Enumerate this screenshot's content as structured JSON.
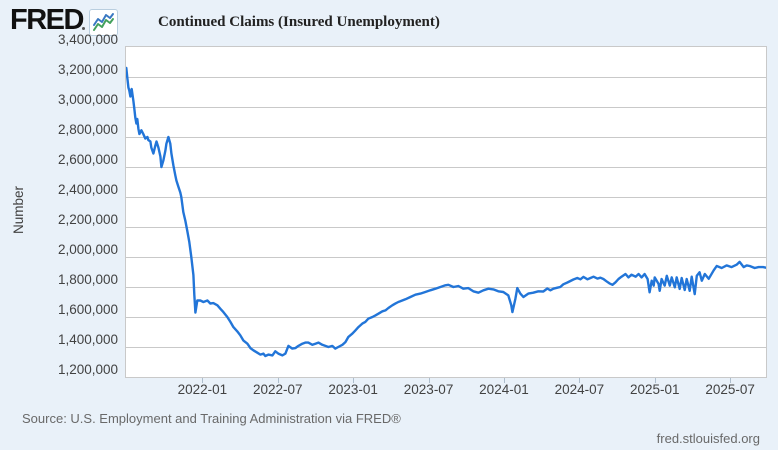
{
  "header": {
    "logo_text": "FRED"
  },
  "footer": {
    "source_text": "Source: U.S. Employment and Training Administration via FRED®",
    "site_text": "fred.stlouisfed.org"
  },
  "colors": {
    "background": "#e9f1f9",
    "plot_background": "#ffffff",
    "gridline": "#c9c9c9",
    "line": "#2275d8",
    "axis_text": "#424242",
    "footer_text": "#696969",
    "spark_blue": "#3a78c2",
    "spark_green": "#44a15c"
  },
  "icons": {
    "logo_icon": "fred-sparkline-icon"
  },
  "chart_data": {
    "type": "line",
    "title": "Continued Claims (Insured Unemployment)",
    "legend": [
      "Continued Claims (Insured Unemployment)"
    ],
    "ylabel": "Number",
    "xlabel": "",
    "grid": "horizontal",
    "legend_position": "top-left",
    "x_range": [
      2021.487,
      2025.731
    ],
    "y_range": [
      1200000,
      3400000
    ],
    "y_ticks": [
      {
        "value": 3400000,
        "label": "3,400,000"
      },
      {
        "value": 3200000,
        "label": "3,200,000"
      },
      {
        "value": 3000000,
        "label": "3,000,000"
      },
      {
        "value": 2800000,
        "label": "2,800,000"
      },
      {
        "value": 2600000,
        "label": "2,600,000"
      },
      {
        "value": 2400000,
        "label": "2,400,000"
      },
      {
        "value": 2200000,
        "label": "2,200,000"
      },
      {
        "value": 2000000,
        "label": "2,000,000"
      },
      {
        "value": 1800000,
        "label": "1,800,000"
      },
      {
        "value": 1600000,
        "label": "1,600,000"
      },
      {
        "value": 1400000,
        "label": "1,400,000"
      },
      {
        "value": 1200000,
        "label": "1,200,000"
      }
    ],
    "x_ticks": [
      {
        "year": 2022.0,
        "label": "2022-01"
      },
      {
        "year": 2022.5,
        "label": "2022-07"
      },
      {
        "year": 2023.0,
        "label": "2023-01"
      },
      {
        "year": 2023.5,
        "label": "2023-07"
      },
      {
        "year": 2024.0,
        "label": "2024-01"
      },
      {
        "year": 2024.5,
        "label": "2024-07"
      },
      {
        "year": 2025.0,
        "label": "2025-01"
      },
      {
        "year": 2025.5,
        "label": "2025-07"
      }
    ],
    "series": [
      {
        "name": "Continued Claims (Insured Unemployment)",
        "color": "#2275d8",
        "points": [
          [
            2021.489,
            3260000
          ],
          [
            2021.496,
            3190000
          ],
          [
            2021.503,
            3130000
          ],
          [
            2021.509,
            3110000
          ],
          [
            2021.516,
            3070000
          ],
          [
            2021.525,
            3120000
          ],
          [
            2021.536,
            3040000
          ],
          [
            2021.542,
            2990000
          ],
          [
            2021.549,
            2930000
          ],
          [
            2021.556,
            2890000
          ],
          [
            2021.562,
            2920000
          ],
          [
            2021.569,
            2855000
          ],
          [
            2021.576,
            2820000
          ],
          [
            2021.589,
            2845000
          ],
          [
            2021.602,
            2820000
          ],
          [
            2021.615,
            2790000
          ],
          [
            2021.629,
            2800000
          ],
          [
            2021.635,
            2780000
          ],
          [
            2021.649,
            2770000
          ],
          [
            2021.655,
            2730000
          ],
          [
            2021.669,
            2690000
          ],
          [
            2021.682,
            2745000
          ],
          [
            2021.689,
            2770000
          ],
          [
            2021.702,
            2730000
          ],
          [
            2021.715,
            2670000
          ],
          [
            2021.722,
            2600000
          ],
          [
            2021.735,
            2645000
          ],
          [
            2021.748,
            2710000
          ],
          [
            2021.755,
            2755000
          ],
          [
            2021.768,
            2800000
          ],
          [
            2021.781,
            2755000
          ],
          [
            2021.788,
            2690000
          ],
          [
            2021.801,
            2610000
          ],
          [
            2021.814,
            2545000
          ],
          [
            2021.821,
            2510000
          ],
          [
            2021.834,
            2470000
          ],
          [
            2021.847,
            2430000
          ],
          [
            2021.854,
            2400000
          ],
          [
            2021.867,
            2300000
          ],
          [
            2021.881,
            2240000
          ],
          [
            2021.894,
            2170000
          ],
          [
            2021.907,
            2100000
          ],
          [
            2021.92,
            2000000
          ],
          [
            2021.934,
            1880000
          ],
          [
            2021.94,
            1750000
          ],
          [
            2021.947,
            1630000
          ],
          [
            2021.96,
            1710000
          ],
          [
            2021.98,
            1710000
          ],
          [
            2022.0,
            1700000
          ],
          [
            2022.027,
            1710000
          ],
          [
            2022.046,
            1690000
          ],
          [
            2022.066,
            1693000
          ],
          [
            2022.093,
            1678000
          ],
          [
            2022.113,
            1655000
          ],
          [
            2022.133,
            1633000
          ],
          [
            2022.159,
            1600000
          ],
          [
            2022.179,
            1567000
          ],
          [
            2022.199,
            1533000
          ],
          [
            2022.225,
            1504000
          ],
          [
            2022.245,
            1478000
          ],
          [
            2022.265,
            1444000
          ],
          [
            2022.292,
            1422000
          ],
          [
            2022.312,
            1393000
          ],
          [
            2022.332,
            1378000
          ],
          [
            2022.358,
            1362000
          ],
          [
            2022.378,
            1349000
          ],
          [
            2022.398,
            1356000
          ],
          [
            2022.411,
            1340000
          ],
          [
            2022.431,
            1349000
          ],
          [
            2022.458,
            1344000
          ],
          [
            2022.477,
            1371000
          ],
          [
            2022.497,
            1356000
          ],
          [
            2022.524,
            1344000
          ],
          [
            2022.544,
            1356000
          ],
          [
            2022.564,
            1407000
          ],
          [
            2022.59,
            1389000
          ],
          [
            2022.61,
            1393000
          ],
          [
            2022.63,
            1407000
          ],
          [
            2022.656,
            1422000
          ],
          [
            2022.676,
            1429000
          ],
          [
            2022.696,
            1429000
          ],
          [
            2022.723,
            1415000
          ],
          [
            2022.743,
            1422000
          ],
          [
            2022.763,
            1429000
          ],
          [
            2022.789,
            1415000
          ],
          [
            2022.809,
            1407000
          ],
          [
            2022.829,
            1400000
          ],
          [
            2022.855,
            1407000
          ],
          [
            2022.875,
            1389000
          ],
          [
            2022.895,
            1400000
          ],
          [
            2022.922,
            1415000
          ],
          [
            2022.942,
            1433000
          ],
          [
            2022.962,
            1467000
          ],
          [
            2022.988,
            1489000
          ],
          [
            2023.008,
            1511000
          ],
          [
            2023.028,
            1533000
          ],
          [
            2023.054,
            1556000
          ],
          [
            2023.074,
            1567000
          ],
          [
            2023.094,
            1589000
          ],
          [
            2023.121,
            1600000
          ],
          [
            2023.141,
            1611000
          ],
          [
            2023.161,
            1622000
          ],
          [
            2023.187,
            1638000
          ],
          [
            2023.207,
            1644000
          ],
          [
            2023.227,
            1660000
          ],
          [
            2023.253,
            1678000
          ],
          [
            2023.273,
            1689000
          ],
          [
            2023.293,
            1700000
          ],
          [
            2023.306,
            1705000
          ],
          [
            2023.34,
            1718000
          ],
          [
            2023.373,
            1733000
          ],
          [
            2023.406,
            1749000
          ],
          [
            2023.439,
            1756000
          ],
          [
            2023.472,
            1767000
          ],
          [
            2023.505,
            1778000
          ],
          [
            2023.539,
            1789000
          ],
          [
            2023.572,
            1800000
          ],
          [
            2023.605,
            1811000
          ],
          [
            2023.625,
            1815000
          ],
          [
            2023.658,
            1800000
          ],
          [
            2023.691,
            1807000
          ],
          [
            2023.724,
            1789000
          ],
          [
            2023.757,
            1793000
          ],
          [
            2023.79,
            1771000
          ],
          [
            2023.824,
            1762000
          ],
          [
            2023.857,
            1778000
          ],
          [
            2023.89,
            1789000
          ],
          [
            2023.923,
            1784000
          ],
          [
            2023.956,
            1771000
          ],
          [
            2023.989,
            1767000
          ],
          [
            2024.022,
            1744000
          ],
          [
            2024.042,
            1678000
          ],
          [
            2024.049,
            1633000
          ],
          [
            2024.069,
            1722000
          ],
          [
            2024.082,
            1793000
          ],
          [
            2024.102,
            1756000
          ],
          [
            2024.122,
            1733000
          ],
          [
            2024.155,
            1756000
          ],
          [
            2024.188,
            1762000
          ],
          [
            2024.221,
            1771000
          ],
          [
            2024.254,
            1770000
          ],
          [
            2024.281,
            1790000
          ],
          [
            2024.301,
            1778000
          ],
          [
            2024.321,
            1789000
          ],
          [
            2024.347,
            1795000
          ],
          [
            2024.367,
            1800000
          ],
          [
            2024.387,
            1818000
          ],
          [
            2024.414,
            1830000
          ],
          [
            2024.434,
            1840000
          ],
          [
            2024.454,
            1850000
          ],
          [
            2024.48,
            1860000
          ],
          [
            2024.5,
            1851000
          ],
          [
            2024.52,
            1867000
          ],
          [
            2024.547,
            1851000
          ],
          [
            2024.567,
            1860000
          ],
          [
            2024.587,
            1869000
          ],
          [
            2024.613,
            1856000
          ],
          [
            2024.633,
            1862000
          ],
          [
            2024.653,
            1853000
          ],
          [
            2024.673,
            1838000
          ],
          [
            2024.693,
            1824000
          ],
          [
            2024.713,
            1815000
          ],
          [
            2024.733,
            1831000
          ],
          [
            2024.753,
            1853000
          ],
          [
            2024.773,
            1869000
          ],
          [
            2024.799,
            1887000
          ],
          [
            2024.819,
            1864000
          ],
          [
            2024.839,
            1882000
          ],
          [
            2024.866,
            1869000
          ],
          [
            2024.886,
            1887000
          ],
          [
            2024.906,
            1864000
          ],
          [
            2024.926,
            1887000
          ],
          [
            2024.946,
            1853000
          ],
          [
            2024.959,
            1765000
          ],
          [
            2024.973,
            1842000
          ],
          [
            2024.986,
            1809000
          ],
          [
            2024.993,
            1864000
          ],
          [
            2025.019,
            1820000
          ],
          [
            2025.026,
            1775000
          ],
          [
            2025.039,
            1853000
          ],
          [
            2025.059,
            1809000
          ],
          [
            2025.073,
            1875000
          ],
          [
            2025.093,
            1809000
          ],
          [
            2025.106,
            1864000
          ],
          [
            2025.126,
            1798000
          ],
          [
            2025.139,
            1864000
          ],
          [
            2025.159,
            1787000
          ],
          [
            2025.172,
            1860000
          ],
          [
            2025.192,
            1780000
          ],
          [
            2025.205,
            1853000
          ],
          [
            2025.225,
            1775000
          ],
          [
            2025.238,
            1869000
          ],
          [
            2025.258,
            1753000
          ],
          [
            2025.272,
            1875000
          ],
          [
            2025.291,
            1898000
          ],
          [
            2025.305,
            1842000
          ],
          [
            2025.325,
            1887000
          ],
          [
            2025.351,
            1855000
          ],
          [
            2025.384,
            1911000
          ],
          [
            2025.404,
            1940000
          ],
          [
            2025.437,
            1927000
          ],
          [
            2025.47,
            1944000
          ],
          [
            2025.503,
            1933000
          ],
          [
            2025.536,
            1949000
          ],
          [
            2025.556,
            1967000
          ],
          [
            2025.583,
            1933000
          ],
          [
            2025.603,
            1944000
          ],
          [
            2025.623,
            1940000
          ],
          [
            2025.656,
            1927000
          ],
          [
            2025.682,
            1933000
          ],
          [
            2025.712,
            1933000
          ],
          [
            2025.727,
            1929000
          ]
        ]
      }
    ]
  }
}
